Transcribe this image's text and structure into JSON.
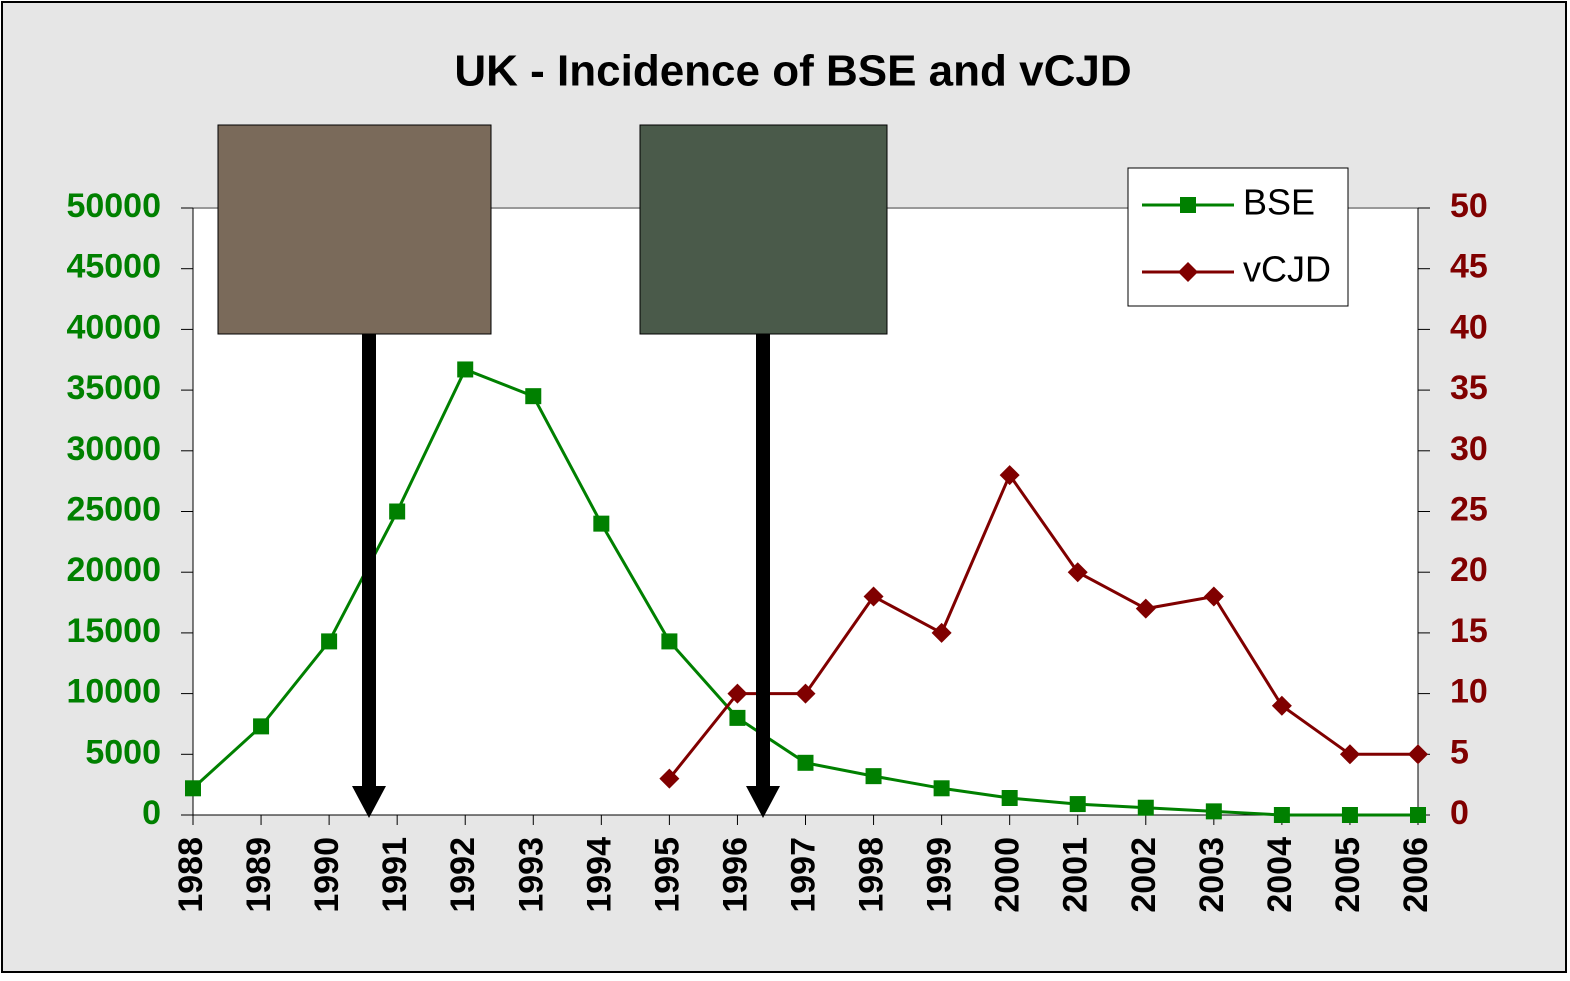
{
  "chart_data": {
    "type": "line",
    "title": "UK - Incidence of BSE and vCJD",
    "categories": [
      "1988",
      "1989",
      "1990",
      "1991",
      "1992",
      "1993",
      "1994",
      "1995",
      "1996",
      "1997",
      "1998",
      "1999",
      "2000",
      "2001",
      "2002",
      "2003",
      "2004",
      "2005",
      "2006"
    ],
    "series": [
      {
        "name": "BSE",
        "color": "#008000",
        "marker": "square",
        "values": [
          2200,
          7300,
          14300,
          25000,
          36700,
          34500,
          24000,
          14300,
          8000,
          4300,
          3200,
          2200,
          1400,
          900,
          600,
          300,
          0,
          0,
          0
        ]
      },
      {
        "name": "vCJD",
        "color": "#800000",
        "marker": "diamond",
        "axis": "y2",
        "values": [
          null,
          null,
          null,
          null,
          null,
          null,
          null,
          3,
          10,
          10,
          18,
          15,
          28,
          20,
          17,
          18,
          9,
          5,
          5
        ]
      }
    ],
    "ylim": [
      0,
      50000
    ],
    "yticks": [
      0,
      5000,
      10000,
      15000,
      20000,
      25000,
      30000,
      35000,
      40000,
      45000,
      50000
    ],
    "y2lim": [
      0,
      50
    ],
    "y2ticks": [
      0,
      5,
      10,
      15,
      20,
      25,
      30,
      35,
      40,
      45,
      50
    ],
    "grid": false,
    "legend": "top-right"
  }
}
